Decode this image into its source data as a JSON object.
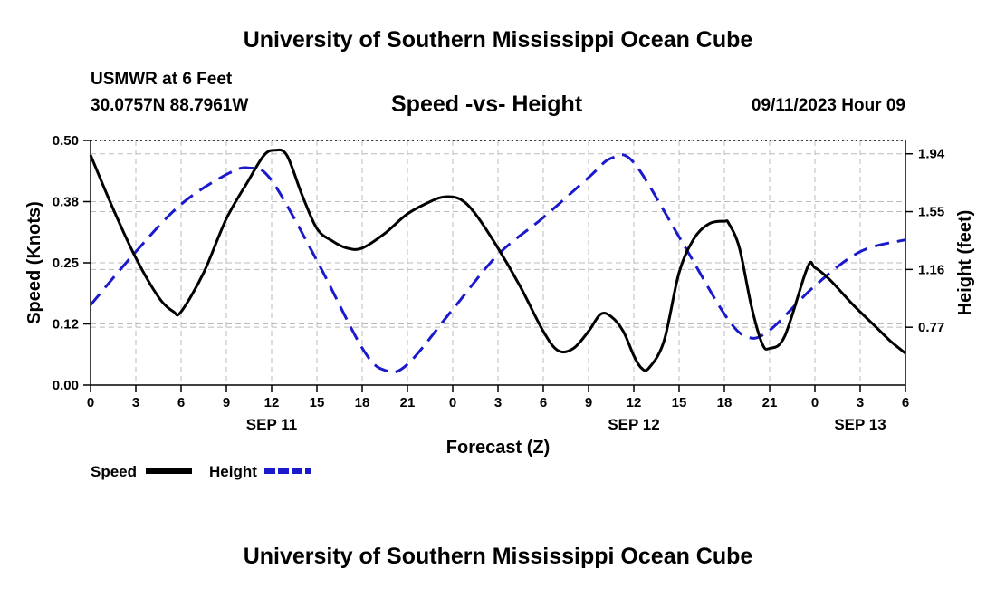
{
  "header": {
    "title": "University of Southern Mississippi Ocean Cube",
    "station": "USMWR at 6 Feet",
    "coords": "30.0757N  88.7961W",
    "subtitle": "Speed -vs- Height",
    "datetime": "09/11/2023 Hour 09"
  },
  "footer": {
    "title": "University of Southern Mississippi Ocean Cube"
  },
  "colors": {
    "speed": "#000000",
    "height": "#1a1acc",
    "grid": "#bbbbbb"
  },
  "chart_data": {
    "type": "line",
    "title": "Speed -vs- Height",
    "xlabel": "Forecast (Z)",
    "ylabel_left": "Speed (Knots)",
    "ylabel_right": "Height (feet)",
    "xlim": [
      0,
      54
    ],
    "ylim_left": [
      0,
      0.5
    ],
    "ylim_right": [
      0.38,
      2.03
    ],
    "x_ticks": [
      0,
      3,
      6,
      9,
      12,
      15,
      18,
      21,
      24,
      27,
      30,
      33,
      36,
      39,
      42,
      45,
      48,
      51,
      54
    ],
    "x_tick_labels": [
      "0",
      "3",
      "6",
      "9",
      "12",
      "15",
      "18",
      "21",
      "0",
      "3",
      "6",
      "9",
      "12",
      "15",
      "18",
      "21",
      "0",
      "3",
      "6"
    ],
    "date_labels": [
      {
        "x": 12,
        "label": "SEP 11"
      },
      {
        "x": 36,
        "label": "SEP 12"
      },
      {
        "x": 51,
        "label": "SEP 13"
      }
    ],
    "y_left_ticks": [
      0,
      0.125,
      0.25,
      0.375,
      0.5
    ],
    "y_left_tick_labels": [
      "0.00",
      "0.12",
      "0.25",
      "0.38",
      "0.50"
    ],
    "y_right_ticks": [
      0.77,
      1.16,
      1.55,
      1.94
    ],
    "y_right_tick_labels": [
      "0.77",
      "1.16",
      "1.55",
      "1.94"
    ],
    "series": [
      {
        "name": "Speed",
        "axis": "left",
        "x": [
          0,
          1.5,
          3,
          4.5,
          5.5,
          6,
          7.5,
          9,
          10.5,
          11.5,
          12.2,
          13,
          14,
          15,
          16,
          17,
          18,
          19.5,
          21,
          22.5,
          23.5,
          24.5,
          25.5,
          27,
          28.5,
          30,
          31,
          32,
          33,
          33.8,
          34.5,
          35.3,
          36,
          36.5,
          37,
          38,
          39,
          40,
          41,
          42,
          42.3,
          43,
          43.8,
          44.5,
          45,
          46,
          47.5,
          48,
          49,
          50.5,
          52,
          53,
          54
        ],
        "values": [
          0.47,
          0.36,
          0.26,
          0.18,
          0.15,
          0.15,
          0.23,
          0.34,
          0.42,
          0.47,
          0.48,
          0.47,
          0.39,
          0.32,
          0.295,
          0.28,
          0.28,
          0.31,
          0.35,
          0.375,
          0.385,
          0.38,
          0.35,
          0.28,
          0.2,
          0.11,
          0.07,
          0.075,
          0.11,
          0.145,
          0.14,
          0.11,
          0.06,
          0.035,
          0.035,
          0.09,
          0.23,
          0.3,
          0.33,
          0.335,
          0.33,
          0.28,
          0.16,
          0.085,
          0.075,
          0.1,
          0.24,
          0.24,
          0.215,
          0.165,
          0.12,
          0.09,
          0.065
        ]
      },
      {
        "name": "Height",
        "axis": "right",
        "x": [
          0,
          3,
          6,
          9,
          10.5,
          12,
          15,
          18,
          19.5,
          21,
          24,
          27,
          30,
          33,
          34.5,
          36,
          39,
          42,
          43.5,
          45,
          48,
          51,
          54
        ],
        "values": [
          0.92,
          1.28,
          1.6,
          1.8,
          1.845,
          1.76,
          1.22,
          0.63,
          0.48,
          0.52,
          0.89,
          1.26,
          1.51,
          1.78,
          1.91,
          1.88,
          1.38,
          0.86,
          0.705,
          0.75,
          1.05,
          1.28,
          1.36
        ]
      }
    ],
    "legend": [
      {
        "name": "Speed"
      },
      {
        "name": "Height"
      }
    ],
    "legend_placement": "bottom-left"
  }
}
